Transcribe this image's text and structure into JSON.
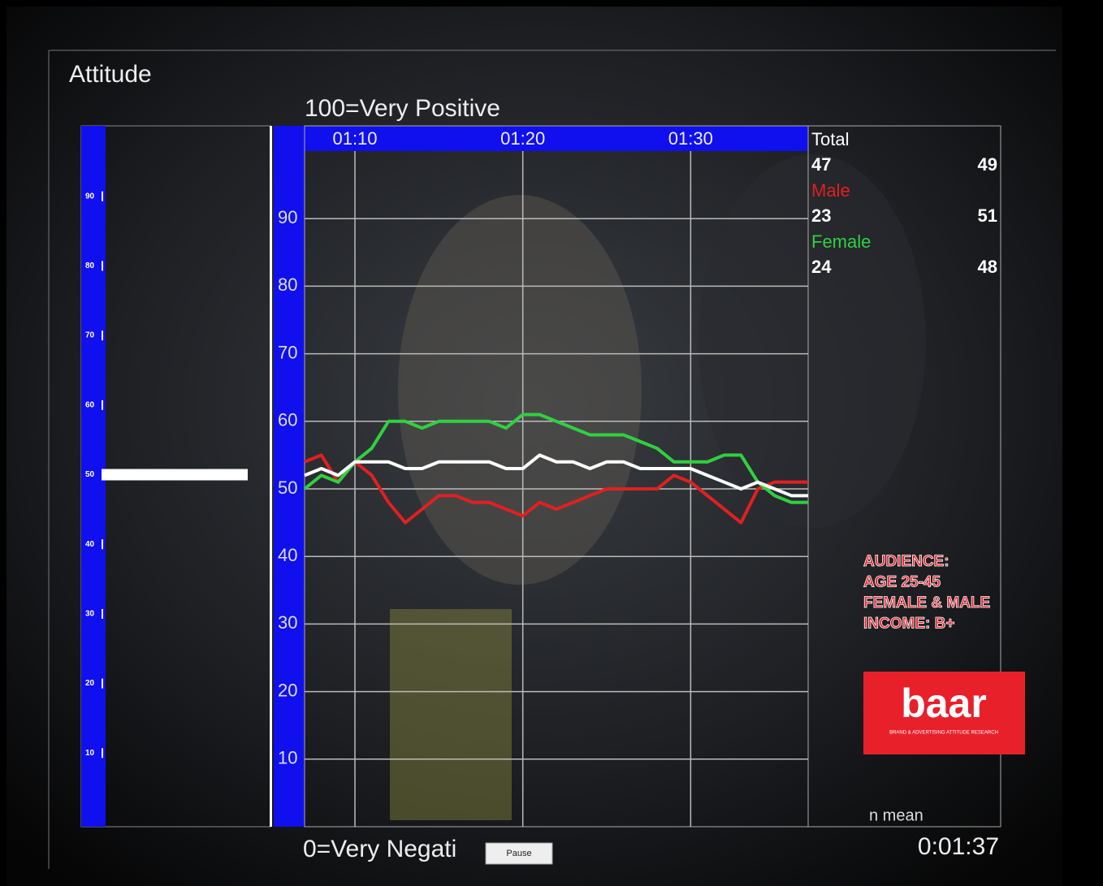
{
  "title": "Attitude",
  "scale_top": "100=Very Positive",
  "scale_bottom": "0=Very Negati",
  "gauge": {
    "ylim": [
      0,
      100
    ],
    "yticks": [
      10,
      20,
      30,
      40,
      50,
      60,
      70,
      80,
      90
    ],
    "value": 50
  },
  "chart_data": {
    "type": "line",
    "x": [
      67,
      68,
      69,
      70,
      71,
      72,
      73,
      74,
      75,
      76,
      77,
      78,
      79,
      80,
      81,
      82,
      83,
      84,
      85,
      86,
      87,
      88,
      89,
      90,
      91,
      92,
      93,
      94,
      95,
      96,
      97
    ],
    "xlim": [
      67,
      97
    ],
    "xticks": [
      {
        "value": 70,
        "label": "01:10"
      },
      {
        "value": 80,
        "label": "01:20"
      },
      {
        "value": 90,
        "label": "01:30"
      }
    ],
    "ylim": [
      0,
      100
    ],
    "yticks": [
      10,
      20,
      30,
      40,
      50,
      60,
      70,
      80,
      90
    ],
    "grid": true,
    "series": [
      {
        "name": "Total",
        "color": "#ffffff",
        "values": [
          52,
          53,
          52,
          54,
          54,
          54,
          53,
          53,
          54,
          54,
          54,
          54,
          53,
          53,
          55,
          54,
          54,
          53,
          54,
          54,
          53,
          53,
          53,
          53,
          52,
          51,
          50,
          51,
          50,
          49,
          49
        ]
      },
      {
        "name": "Male",
        "color": "#e02020",
        "values": [
          54,
          55,
          51,
          54,
          52,
          48,
          45,
          47,
          49,
          49,
          48,
          48,
          47,
          46,
          48,
          47,
          48,
          49,
          50,
          50,
          50,
          50,
          52,
          51,
          49,
          47,
          45,
          50,
          51,
          51,
          51
        ]
      },
      {
        "name": "Female",
        "color": "#30d040",
        "values": [
          50,
          52,
          51,
          54,
          56,
          60,
          60,
          59,
          60,
          60,
          60,
          60,
          59,
          61,
          61,
          60,
          59,
          58,
          58,
          58,
          57,
          56,
          54,
          54,
          54,
          55,
          55,
          51,
          49,
          48,
          48
        ]
      }
    ]
  },
  "stats": {
    "rows": [
      {
        "n": 47,
        "mean": 49
      },
      {
        "n": 23,
        "mean": 51
      },
      {
        "n": 24,
        "mean": 48
      }
    ],
    "footer": "n mean"
  },
  "audience": [
    "AUDIENCE:",
    "AGE 25-45",
    "FEMALE & MALE",
    "INCOME: B+"
  ],
  "logo": {
    "name": "baar",
    "tagline": "BRAND & ADVERTISING ATTITUDE RESEARCH"
  },
  "timecode": "0:01:37",
  "pause_button": "Pause"
}
